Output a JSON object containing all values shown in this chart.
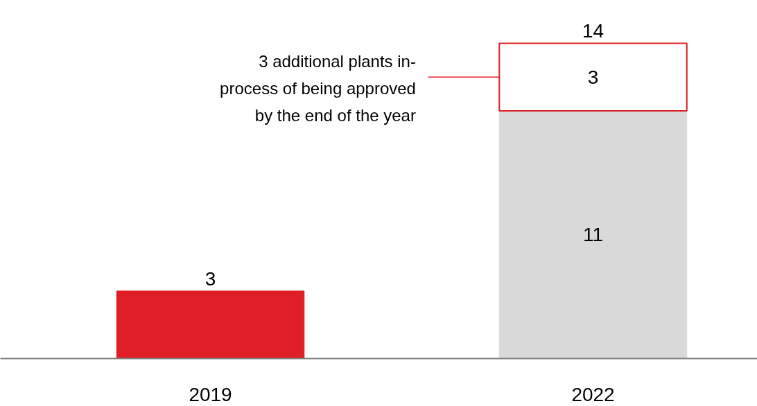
{
  "chart_data": {
    "type": "bar",
    "stacked": true,
    "categories": [
      "2019",
      "2022"
    ],
    "series": [
      {
        "colors": [
          "#e01e25",
          "#d9d9d9"
        ],
        "values": [
          3,
          11
        ],
        "value_labels": [
          null,
          "11"
        ]
      },
      {
        "color": "#e01e25",
        "values": [
          null,
          3
        ],
        "value_labels": [
          null,
          "3"
        ]
      }
    ],
    "totals": [
      "3",
      "14"
    ],
    "annotations": [
      "3 additional plants in-\nprocess of being approved\nby the end of the year"
    ],
    "grid": false,
    "tick_labels": "x"
  }
}
